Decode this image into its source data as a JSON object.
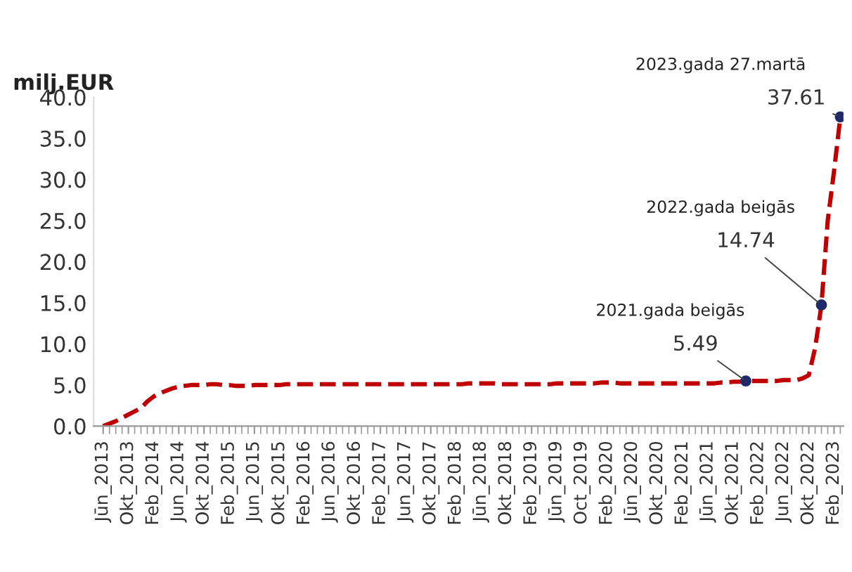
{
  "chart_data": {
    "type": "line",
    "ylabel": "milj.EUR",
    "categories": [
      "Jūn_2013",
      null,
      null,
      null,
      "Okt_2013",
      null,
      null,
      null,
      "Feb_2014",
      null,
      null,
      null,
      "Jun_2014",
      null,
      null,
      null,
      "Okt_2014",
      null,
      null,
      null,
      "Feb_2015",
      null,
      null,
      null,
      "Jun_2015",
      null,
      null,
      null,
      "Okt_2015",
      null,
      null,
      null,
      "Feb_2016",
      null,
      null,
      null,
      "Jun_2016",
      null,
      null,
      null,
      "Okt_2016",
      null,
      null,
      null,
      "Feb_2017",
      null,
      null,
      null,
      "Jun_2017",
      null,
      null,
      null,
      "Okt_2017",
      null,
      null,
      null,
      "Feb_2018",
      null,
      null,
      null,
      "Jūn_2018",
      null,
      null,
      null,
      "Okt_2018",
      null,
      null,
      null,
      "Feb_2019",
      null,
      null,
      null,
      "Jūn_2019",
      null,
      null,
      null,
      "Oct_2019",
      null,
      null,
      null,
      "Feb_2020",
      null,
      null,
      null,
      "Jūn_2020",
      null,
      null,
      null,
      "Okt_2020",
      null,
      null,
      null,
      "Feb_2021",
      null,
      null,
      null,
      "Jūn_2021",
      null,
      null,
      null,
      "Okt_2021",
      null,
      null,
      null,
      "Feb_2022",
      null,
      null,
      null,
      "Jun_2022",
      null,
      null,
      null,
      "Okt_2022",
      null,
      null,
      null,
      "Feb_2023",
      null
    ],
    "series": [
      {
        "type": "line",
        "color": "#c00000",
        "line_style": "dashed",
        "marker": "none",
        "values": [
          0.0,
          0.3,
          0.6,
          1.0,
          1.4,
          1.8,
          2.2,
          3.0,
          3.6,
          4.0,
          4.3,
          4.6,
          4.8,
          4.9,
          5.0,
          5.0,
          5.0,
          5.1,
          5.1,
          5.0,
          5.0,
          4.9,
          4.9,
          4.9,
          5.0,
          5.0,
          5.0,
          5.0,
          5.0,
          5.1,
          5.1,
          5.1,
          5.1,
          5.1,
          5.1,
          5.1,
          5.1,
          5.1,
          5.1,
          5.1,
          5.1,
          5.1,
          5.1,
          5.1,
          5.1,
          5.1,
          5.1,
          5.1,
          5.1,
          5.1,
          5.1,
          5.1,
          5.1,
          5.1,
          5.1,
          5.1,
          5.1,
          5.1,
          5.2,
          5.2,
          5.2,
          5.2,
          5.2,
          5.1,
          5.1,
          5.1,
          5.1,
          5.1,
          5.1,
          5.1,
          5.1,
          5.1,
          5.2,
          5.2,
          5.2,
          5.2,
          5.2,
          5.2,
          5.2,
          5.3,
          5.3,
          5.3,
          5.2,
          5.2,
          5.2,
          5.2,
          5.2,
          5.2,
          5.2,
          5.2,
          5.2,
          5.2,
          5.2,
          5.2,
          5.2,
          5.2,
          5.2,
          5.2,
          5.3,
          5.3,
          5.4,
          5.4,
          5.5,
          5.5,
          5.5,
          5.5,
          5.5,
          5.5,
          5.6,
          5.6,
          5.6,
          5.8,
          6.2,
          9.5,
          14.7,
          25.0,
          31.0,
          37.6
        ]
      },
      {
        "type": "scatter",
        "color": "#1f2a6b",
        "marker": "circle",
        "values": [
          null,
          null,
          null,
          null,
          null,
          null,
          null,
          null,
          null,
          null,
          null,
          null,
          null,
          null,
          null,
          null,
          null,
          null,
          null,
          null,
          null,
          null,
          null,
          null,
          null,
          null,
          null,
          null,
          null,
          null,
          null,
          null,
          null,
          null,
          null,
          null,
          null,
          null,
          null,
          null,
          null,
          null,
          null,
          null,
          null,
          null,
          null,
          null,
          null,
          null,
          null,
          null,
          null,
          null,
          null,
          null,
          null,
          null,
          null,
          null,
          null,
          null,
          null,
          null,
          null,
          null,
          null,
          null,
          null,
          null,
          null,
          null,
          null,
          null,
          null,
          null,
          null,
          null,
          null,
          null,
          null,
          null,
          null,
          null,
          null,
          null,
          null,
          null,
          null,
          null,
          null,
          null,
          null,
          null,
          null,
          null,
          null,
          null,
          null,
          null,
          null,
          null,
          5.49,
          null,
          null,
          null,
          null,
          null,
          null,
          null,
          null,
          null,
          null,
          null,
          14.74,
          null,
          null,
          37.61
        ],
        "value_labels": [
          null,
          null,
          null,
          null,
          null,
          null,
          null,
          null,
          null,
          null,
          null,
          null,
          null,
          null,
          null,
          null,
          null,
          null,
          null,
          null,
          null,
          null,
          null,
          null,
          null,
          null,
          null,
          null,
          null,
          null,
          null,
          null,
          null,
          null,
          null,
          null,
          null,
          null,
          null,
          null,
          null,
          null,
          null,
          null,
          null,
          null,
          null,
          null,
          null,
          null,
          null,
          null,
          null,
          null,
          null,
          null,
          null,
          null,
          null,
          null,
          null,
          null,
          null,
          null,
          null,
          null,
          null,
          null,
          null,
          null,
          null,
          null,
          null,
          null,
          null,
          null,
          null,
          null,
          null,
          null,
          null,
          null,
          null,
          null,
          null,
          null,
          null,
          null,
          null,
          null,
          null,
          null,
          null,
          null,
          null,
          null,
          null,
          null,
          null,
          null,
          null,
          null,
          "5.49",
          null,
          null,
          null,
          null,
          null,
          null,
          null,
          null,
          null,
          null,
          null,
          "14.74",
          null,
          null,
          "37.61"
        ]
      }
    ],
    "annotations": [
      "2021.gada beigās",
      "2022.gada beigās",
      "2023.gada 27.martā"
    ],
    "ylim": [
      0,
      40
    ],
    "yticks": [
      {
        "value": 0,
        "label": "0.0"
      },
      {
        "value": 5,
        "label": "5.0"
      },
      {
        "value": 10,
        "label": "10.0"
      },
      {
        "value": 15,
        "label": "15.0"
      },
      {
        "value": 20,
        "label": "20.0"
      },
      {
        "value": 25,
        "label": "25.0"
      },
      {
        "value": 30,
        "label": "30.0"
      },
      {
        "value": 35,
        "label": "35.0"
      },
      {
        "value": 40,
        "label": "40.0"
      }
    ],
    "grid": false
  }
}
